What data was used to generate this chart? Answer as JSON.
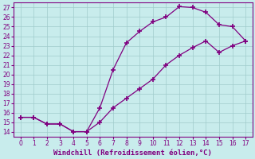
{
  "xlabel": "Windchill (Refroidissement éolien,°C)",
  "line_color": "#800080",
  "bg_color": "#c8ecec",
  "grid_color": "#a0cccc",
  "curve1_x": [
    0,
    1,
    2,
    3,
    4,
    5,
    6,
    7,
    8,
    9,
    10,
    11,
    12,
    13,
    14,
    15,
    16,
    17
  ],
  "curve1_y": [
    15.5,
    15.5,
    14.8,
    14.8,
    14.0,
    14.0,
    16.5,
    20.5,
    23.3,
    24.5,
    25.5,
    26.0,
    27.1,
    27.0,
    26.5,
    25.2,
    25.0,
    23.5
  ],
  "curve2_x": [
    0,
    1,
    2,
    3,
    4,
    5,
    6,
    7,
    8,
    9,
    10,
    11,
    12,
    13,
    14,
    15,
    16,
    17
  ],
  "curve2_y": [
    15.5,
    15.5,
    14.8,
    14.8,
    14.0,
    14.0,
    15.0,
    16.5,
    17.5,
    18.5,
    19.5,
    21.0,
    22.0,
    22.8,
    23.5,
    22.3,
    23.0,
    23.5
  ],
  "xlim": [
    -0.5,
    17.5
  ],
  "ylim": [
    13.5,
    27.5
  ],
  "yticks": [
    14,
    15,
    16,
    17,
    18,
    19,
    20,
    21,
    22,
    23,
    24,
    25,
    26,
    27
  ],
  "xticks": [
    0,
    1,
    2,
    3,
    4,
    5,
    6,
    7,
    8,
    9,
    10,
    11,
    12,
    13,
    14,
    15,
    16,
    17
  ],
  "tick_fontsize": 5.5,
  "label_fontsize": 6.5
}
